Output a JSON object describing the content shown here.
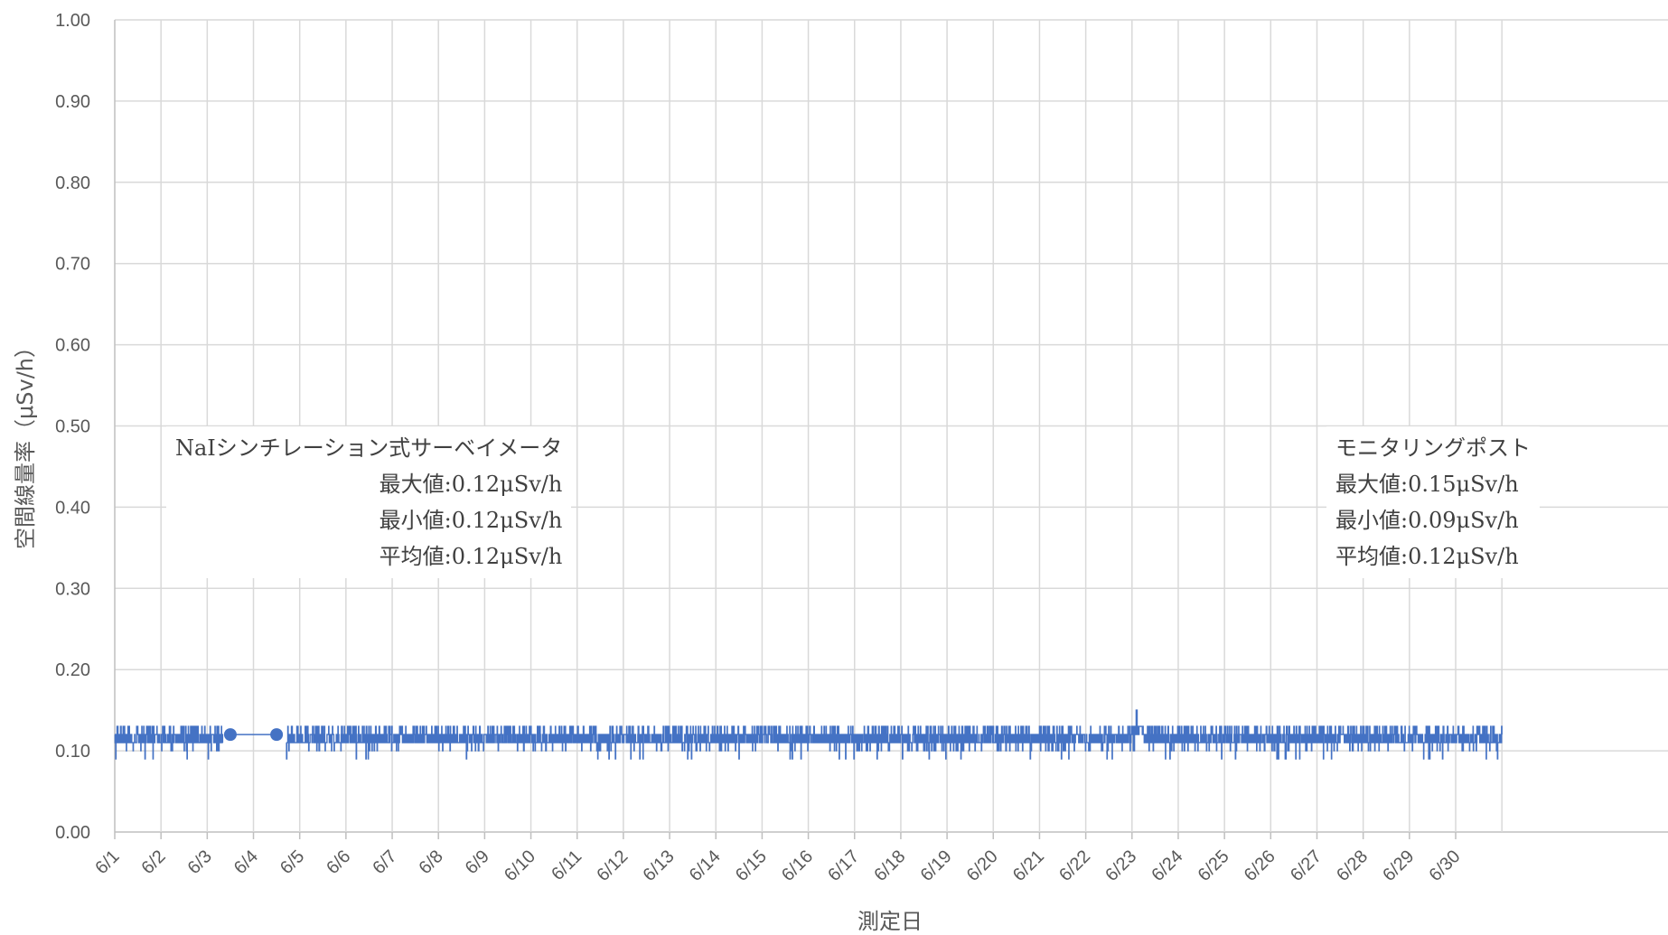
{
  "chart_data": {
    "type": "line",
    "title": "",
    "xlabel": "測定日",
    "ylabel": "空間線量率（μSv/h）",
    "x_ticks": [
      "6/1",
      "6/2",
      "6/3",
      "6/4",
      "6/5",
      "6/6",
      "6/7",
      "6/8",
      "6/9",
      "6/10",
      "6/11",
      "6/12",
      "6/13",
      "6/14",
      "6/15",
      "6/16",
      "6/17",
      "6/18",
      "6/19",
      "6/20",
      "6/21",
      "6/22",
      "6/23",
      "6/24",
      "6/25",
      "6/26",
      "6/27",
      "6/28",
      "6/29",
      "6/30"
    ],
    "y_ticks": [
      "0.00",
      "0.10",
      "0.20",
      "0.30",
      "0.40",
      "0.50",
      "0.60",
      "0.70",
      "0.80",
      "0.90",
      "1.00"
    ],
    "ylim": [
      0,
      1.0
    ],
    "xlim": [
      "6/1",
      "7/1"
    ],
    "grid": true,
    "series": [
      {
        "name": "NaIシンチレーション式サーベイメータ",
        "color": "#4472C4",
        "marker": "circle",
        "points": [
          {
            "x": "6/3 12:00",
            "y": 0.12
          },
          {
            "x": "6/4 12:00",
            "y": 0.12
          }
        ]
      },
      {
        "name": "モニタリングポスト",
        "color": "#4472C4",
        "marker": "none",
        "typical": 0.11,
        "min": 0.09,
        "max": 0.15,
        "mean": 0.12,
        "gap": [
          "6/3 08:00",
          "6/4 17:00"
        ],
        "max_at": "6/23"
      }
    ]
  },
  "annotations": {
    "nai": {
      "title": "NaIシンチレーション式サーベイメータ",
      "max": "最大値:0.12μSv/h",
      "min": "最小値:0.12μSv/h",
      "avg": "平均値:0.12μSv/h"
    },
    "mp": {
      "title": "モニタリングポスト",
      "max": "最大値:0.15μSv/h",
      "min": "最小値:0.09μSv/h",
      "avg": "平均値:0.12μSv/h"
    }
  }
}
